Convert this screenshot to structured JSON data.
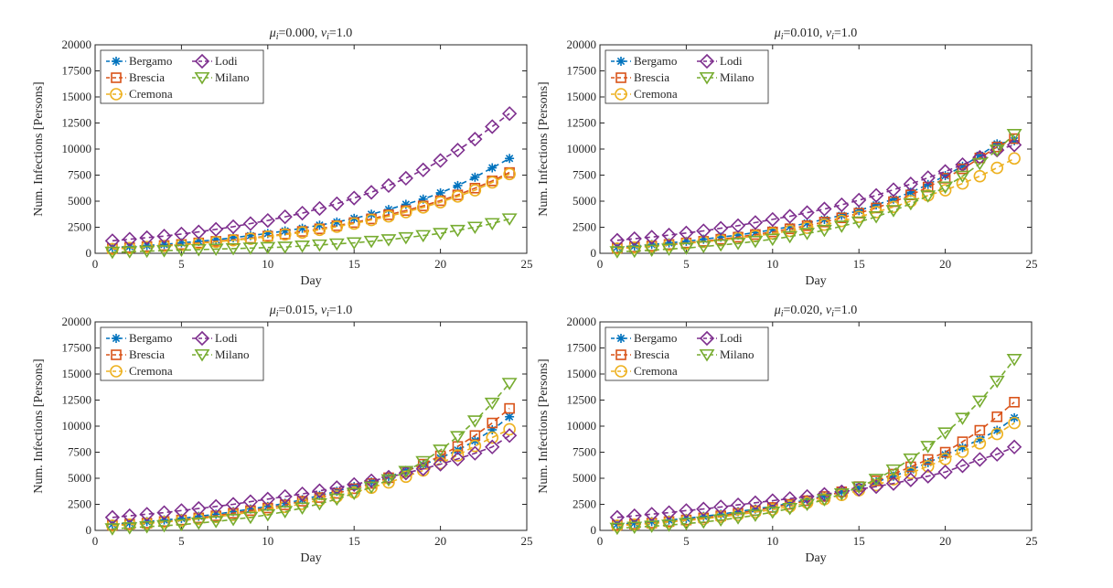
{
  "chart_data": [
    {
      "type": "line",
      "title_parts": [
        "μ",
        "i",
        "=0.000, ",
        "ν",
        "i",
        "=1.0"
      ],
      "xlabel": "Day",
      "ylabel": "Num. Infections [Persons]",
      "xlim": [
        0,
        25
      ],
      "ylim": [
        0,
        20000
      ],
      "xticks": [
        "0",
        "5",
        "10",
        "15",
        "20",
        "25"
      ],
      "yticks": [
        "0",
        "2500",
        "5000",
        "7500",
        "10000",
        "12500",
        "15000",
        "17500",
        "20000"
      ],
      "x": [
        1,
        2,
        3,
        4,
        5,
        6,
        7,
        8,
        9,
        10,
        11,
        12,
        13,
        14,
        15,
        16,
        17,
        18,
        19,
        20,
        21,
        22,
        23,
        24
      ],
      "series": [
        {
          "name": "Bergamo",
          "color": "#0072BD",
          "marker": "star",
          "values": [
            550,
            650,
            750,
            850,
            1000,
            1150,
            1300,
            1500,
            1700,
            1900,
            2150,
            2400,
            2700,
            3000,
            3350,
            3750,
            4200,
            4700,
            5200,
            5800,
            6500,
            7300,
            8200,
            9100
          ]
        },
        {
          "name": "Brescia",
          "color": "#D95319",
          "marker": "square",
          "values": [
            450,
            550,
            650,
            750,
            850,
            1000,
            1150,
            1300,
            1450,
            1650,
            1850,
            2100,
            2350,
            2650,
            2950,
            3300,
            3700,
            4100,
            4550,
            5050,
            5600,
            6250,
            6950,
            7750
          ]
        },
        {
          "name": "Cremona",
          "color": "#EDB120",
          "marker": "circle",
          "values": [
            400,
            500,
            600,
            700,
            800,
            950,
            1100,
            1250,
            1400,
            1600,
            1800,
            2000,
            2250,
            2550,
            2850,
            3200,
            3550,
            3950,
            4400,
            4900,
            5450,
            6050,
            6800,
            7600
          ]
        },
        {
          "name": "Lodi",
          "color": "#7E2F8E",
          "marker": "diamond",
          "values": [
            1200,
            1350,
            1500,
            1650,
            1850,
            2050,
            2300,
            2550,
            2850,
            3150,
            3500,
            3850,
            4300,
            4750,
            5300,
            5850,
            6500,
            7200,
            8000,
            8900,
            9900,
            10950,
            12150,
            13400
          ]
        },
        {
          "name": "Milano",
          "color": "#77AC30",
          "marker": "triangle-down",
          "values": [
            100,
            150,
            200,
            250,
            300,
            350,
            400,
            450,
            500,
            550,
            600,
            700,
            800,
            900,
            1000,
            1150,
            1300,
            1500,
            1700,
            1900,
            2200,
            2500,
            2850,
            3300
          ]
        }
      ]
    },
    {
      "type": "line",
      "title_parts": [
        "μ",
        "i",
        "=0.010, ",
        "ν",
        "i",
        "=1.0"
      ],
      "xlabel": "Day",
      "ylabel": "Num. Infections [Persons]",
      "xlim": [
        0,
        25
      ],
      "ylim": [
        0,
        20000
      ],
      "xticks": [
        "0",
        "5",
        "10",
        "15",
        "20",
        "25"
      ],
      "yticks": [
        "0",
        "2500",
        "5000",
        "7500",
        "10000",
        "12500",
        "15000",
        "17500",
        "20000"
      ],
      "x": [
        1,
        2,
        3,
        4,
        5,
        6,
        7,
        8,
        9,
        10,
        11,
        12,
        13,
        14,
        15,
        16,
        17,
        18,
        19,
        20,
        21,
        22,
        23,
        24
      ],
      "series": [
        {
          "name": "Bergamo",
          "color": "#0072BD",
          "marker": "star",
          "values": [
            600,
            700,
            850,
            1000,
            1150,
            1350,
            1550,
            1750,
            2000,
            2250,
            2550,
            2900,
            3250,
            3650,
            4100,
            4650,
            5200,
            5850,
            6600,
            7450,
            8350,
            9400,
            10500,
            10800
          ]
        },
        {
          "name": "Brescia",
          "color": "#D95319",
          "marker": "square",
          "values": [
            500,
            600,
            700,
            850,
            1000,
            1150,
            1350,
            1550,
            1800,
            2050,
            2350,
            2650,
            3000,
            3400,
            3850,
            4350,
            4950,
            5600,
            6350,
            7200,
            8100,
            9150,
            10200,
            11000
          ]
        },
        {
          "name": "Cremona",
          "color": "#EDB120",
          "marker": "circle",
          "values": [
            450,
            550,
            650,
            800,
            950,
            1100,
            1250,
            1450,
            1650,
            1900,
            2150,
            2450,
            2750,
            3100,
            3500,
            3950,
            4450,
            5000,
            5550,
            6050,
            6700,
            7400,
            8200,
            9100
          ]
        },
        {
          "name": "Lodi",
          "color": "#7E2F8E",
          "marker": "diamond",
          "values": [
            1250,
            1400,
            1550,
            1750,
            1950,
            2150,
            2400,
            2650,
            2950,
            3250,
            3550,
            3900,
            4250,
            4650,
            5100,
            5550,
            6100,
            6650,
            7250,
            7850,
            8500,
            9200,
            9900,
            10400
          ]
        },
        {
          "name": "Milano",
          "color": "#77AC30",
          "marker": "triangle-down",
          "values": [
            150,
            200,
            300,
            400,
            500,
            650,
            800,
            950,
            1150,
            1350,
            1600,
            1900,
            2200,
            2600,
            3000,
            3500,
            4100,
            4750,
            5500,
            6350,
            7400,
            8600,
            9900,
            11400
          ]
        }
      ]
    },
    {
      "type": "line",
      "title_parts": [
        "μ",
        "i",
        "=0.015, ",
        "ν",
        "i",
        "=1.0"
      ],
      "xlabel": "Day",
      "ylabel": "Num. Infections [Persons]",
      "xlim": [
        0,
        25
      ],
      "ylim": [
        0,
        20000
      ],
      "xticks": [
        "0",
        "5",
        "10",
        "15",
        "20",
        "25"
      ],
      "yticks": [
        "0",
        "2500",
        "5000",
        "7500",
        "10000",
        "12500",
        "15000",
        "17500",
        "20000"
      ],
      "x": [
        1,
        2,
        3,
        4,
        5,
        6,
        7,
        8,
        9,
        10,
        11,
        12,
        13,
        14,
        15,
        16,
        17,
        18,
        19,
        20,
        21,
        22,
        23,
        24
      ],
      "series": [
        {
          "name": "Bergamo",
          "color": "#0072BD",
          "marker": "star",
          "values": [
            600,
            700,
            850,
            1000,
            1150,
            1350,
            1550,
            1800,
            2050,
            2300,
            2600,
            2950,
            3350,
            3750,
            4200,
            4650,
            5150,
            5700,
            6300,
            6950,
            7700,
            8600,
            9650,
            10900
          ]
        },
        {
          "name": "Brescia",
          "color": "#D95319",
          "marker": "square",
          "values": [
            500,
            600,
            700,
            850,
            1000,
            1200,
            1400,
            1650,
            1900,
            2150,
            2450,
            2800,
            3150,
            3550,
            4000,
            4500,
            5050,
            5650,
            6350,
            7150,
            8050,
            9100,
            10300,
            11700
          ]
        },
        {
          "name": "Cremona",
          "color": "#EDB120",
          "marker": "circle",
          "values": [
            450,
            550,
            650,
            800,
            950,
            1100,
            1300,
            1500,
            1750,
            2000,
            2250,
            2550,
            2900,
            3250,
            3650,
            4100,
            4600,
            5150,
            5750,
            6450,
            7200,
            8100,
            8900,
            9700
          ]
        },
        {
          "name": "Lodi",
          "color": "#7E2F8E",
          "marker": "diamond",
          "values": [
            1250,
            1400,
            1550,
            1700,
            1900,
            2100,
            2300,
            2500,
            2750,
            3000,
            3250,
            3500,
            3800,
            4100,
            4400,
            4750,
            5100,
            5500,
            5900,
            6350,
            6850,
            7400,
            8000,
            9100
          ]
        },
        {
          "name": "Milano",
          "color": "#77AC30",
          "marker": "triangle-down",
          "values": [
            150,
            250,
            350,
            450,
            550,
            700,
            850,
            1050,
            1250,
            1500,
            1800,
            2150,
            2550,
            3000,
            3550,
            4150,
            4850,
            5650,
            6600,
            7700,
            9000,
            10500,
            12200,
            14100
          ]
        }
      ]
    },
    {
      "type": "line",
      "title_parts": [
        "μ",
        "i",
        "=0.020, ",
        "ν",
        "i",
        "=1.0"
      ],
      "xlabel": "Day",
      "ylabel": "Num. Infections [Persons]",
      "xlim": [
        0,
        25
      ],
      "ylim": [
        0,
        20000
      ],
      "xticks": [
        "0",
        "5",
        "10",
        "15",
        "20",
        "25"
      ],
      "yticks": [
        "0",
        "2500",
        "5000",
        "7500",
        "10000",
        "12500",
        "15000",
        "17500",
        "20000"
      ],
      "x": [
        1,
        2,
        3,
        4,
        5,
        6,
        7,
        8,
        9,
        10,
        11,
        12,
        13,
        14,
        15,
        16,
        17,
        18,
        19,
        20,
        21,
        22,
        23,
        24
      ],
      "series": [
        {
          "name": "Bergamo",
          "color": "#0072BD",
          "marker": "star",
          "values": [
            600,
            700,
            850,
            1000,
            1150,
            1350,
            1550,
            1800,
            2050,
            2300,
            2600,
            2950,
            3300,
            3700,
            4150,
            4650,
            5200,
            5800,
            6500,
            7250,
            7950,
            8750,
            9600,
            10800
          ]
        },
        {
          "name": "Brescia",
          "color": "#D95319",
          "marker": "square",
          "values": [
            500,
            600,
            700,
            850,
            1000,
            1200,
            1400,
            1650,
            1900,
            2200,
            2500,
            2850,
            3250,
            3700,
            4200,
            4750,
            5400,
            6100,
            6800,
            7500,
            8500,
            9600,
            10900,
            12300
          ]
        },
        {
          "name": "Cremona",
          "color": "#EDB120",
          "marker": "circle",
          "values": [
            450,
            550,
            650,
            800,
            950,
            1100,
            1300,
            1500,
            1750,
            2000,
            2300,
            2650,
            3000,
            3400,
            3850,
            4350,
            4900,
            5500,
            6150,
            6850,
            7550,
            8350,
            9250,
            10300
          ]
        },
        {
          "name": "Lodi",
          "color": "#7E2F8E",
          "marker": "diamond",
          "values": [
            1250,
            1400,
            1550,
            1700,
            1900,
            2050,
            2250,
            2450,
            2650,
            2850,
            3050,
            3250,
            3450,
            3700,
            3950,
            4200,
            4500,
            4850,
            5200,
            5600,
            6200,
            6800,
            7300,
            8000
          ]
        },
        {
          "name": "Milano",
          "color": "#77AC30",
          "marker": "triangle-down",
          "values": [
            200,
            300,
            400,
            500,
            650,
            800,
            1000,
            1200,
            1450,
            1750,
            2100,
            2500,
            2950,
            3500,
            4150,
            4900,
            5800,
            6850,
            8050,
            9350,
            10750,
            12400,
            14300,
            16400
          ]
        }
      ]
    }
  ]
}
